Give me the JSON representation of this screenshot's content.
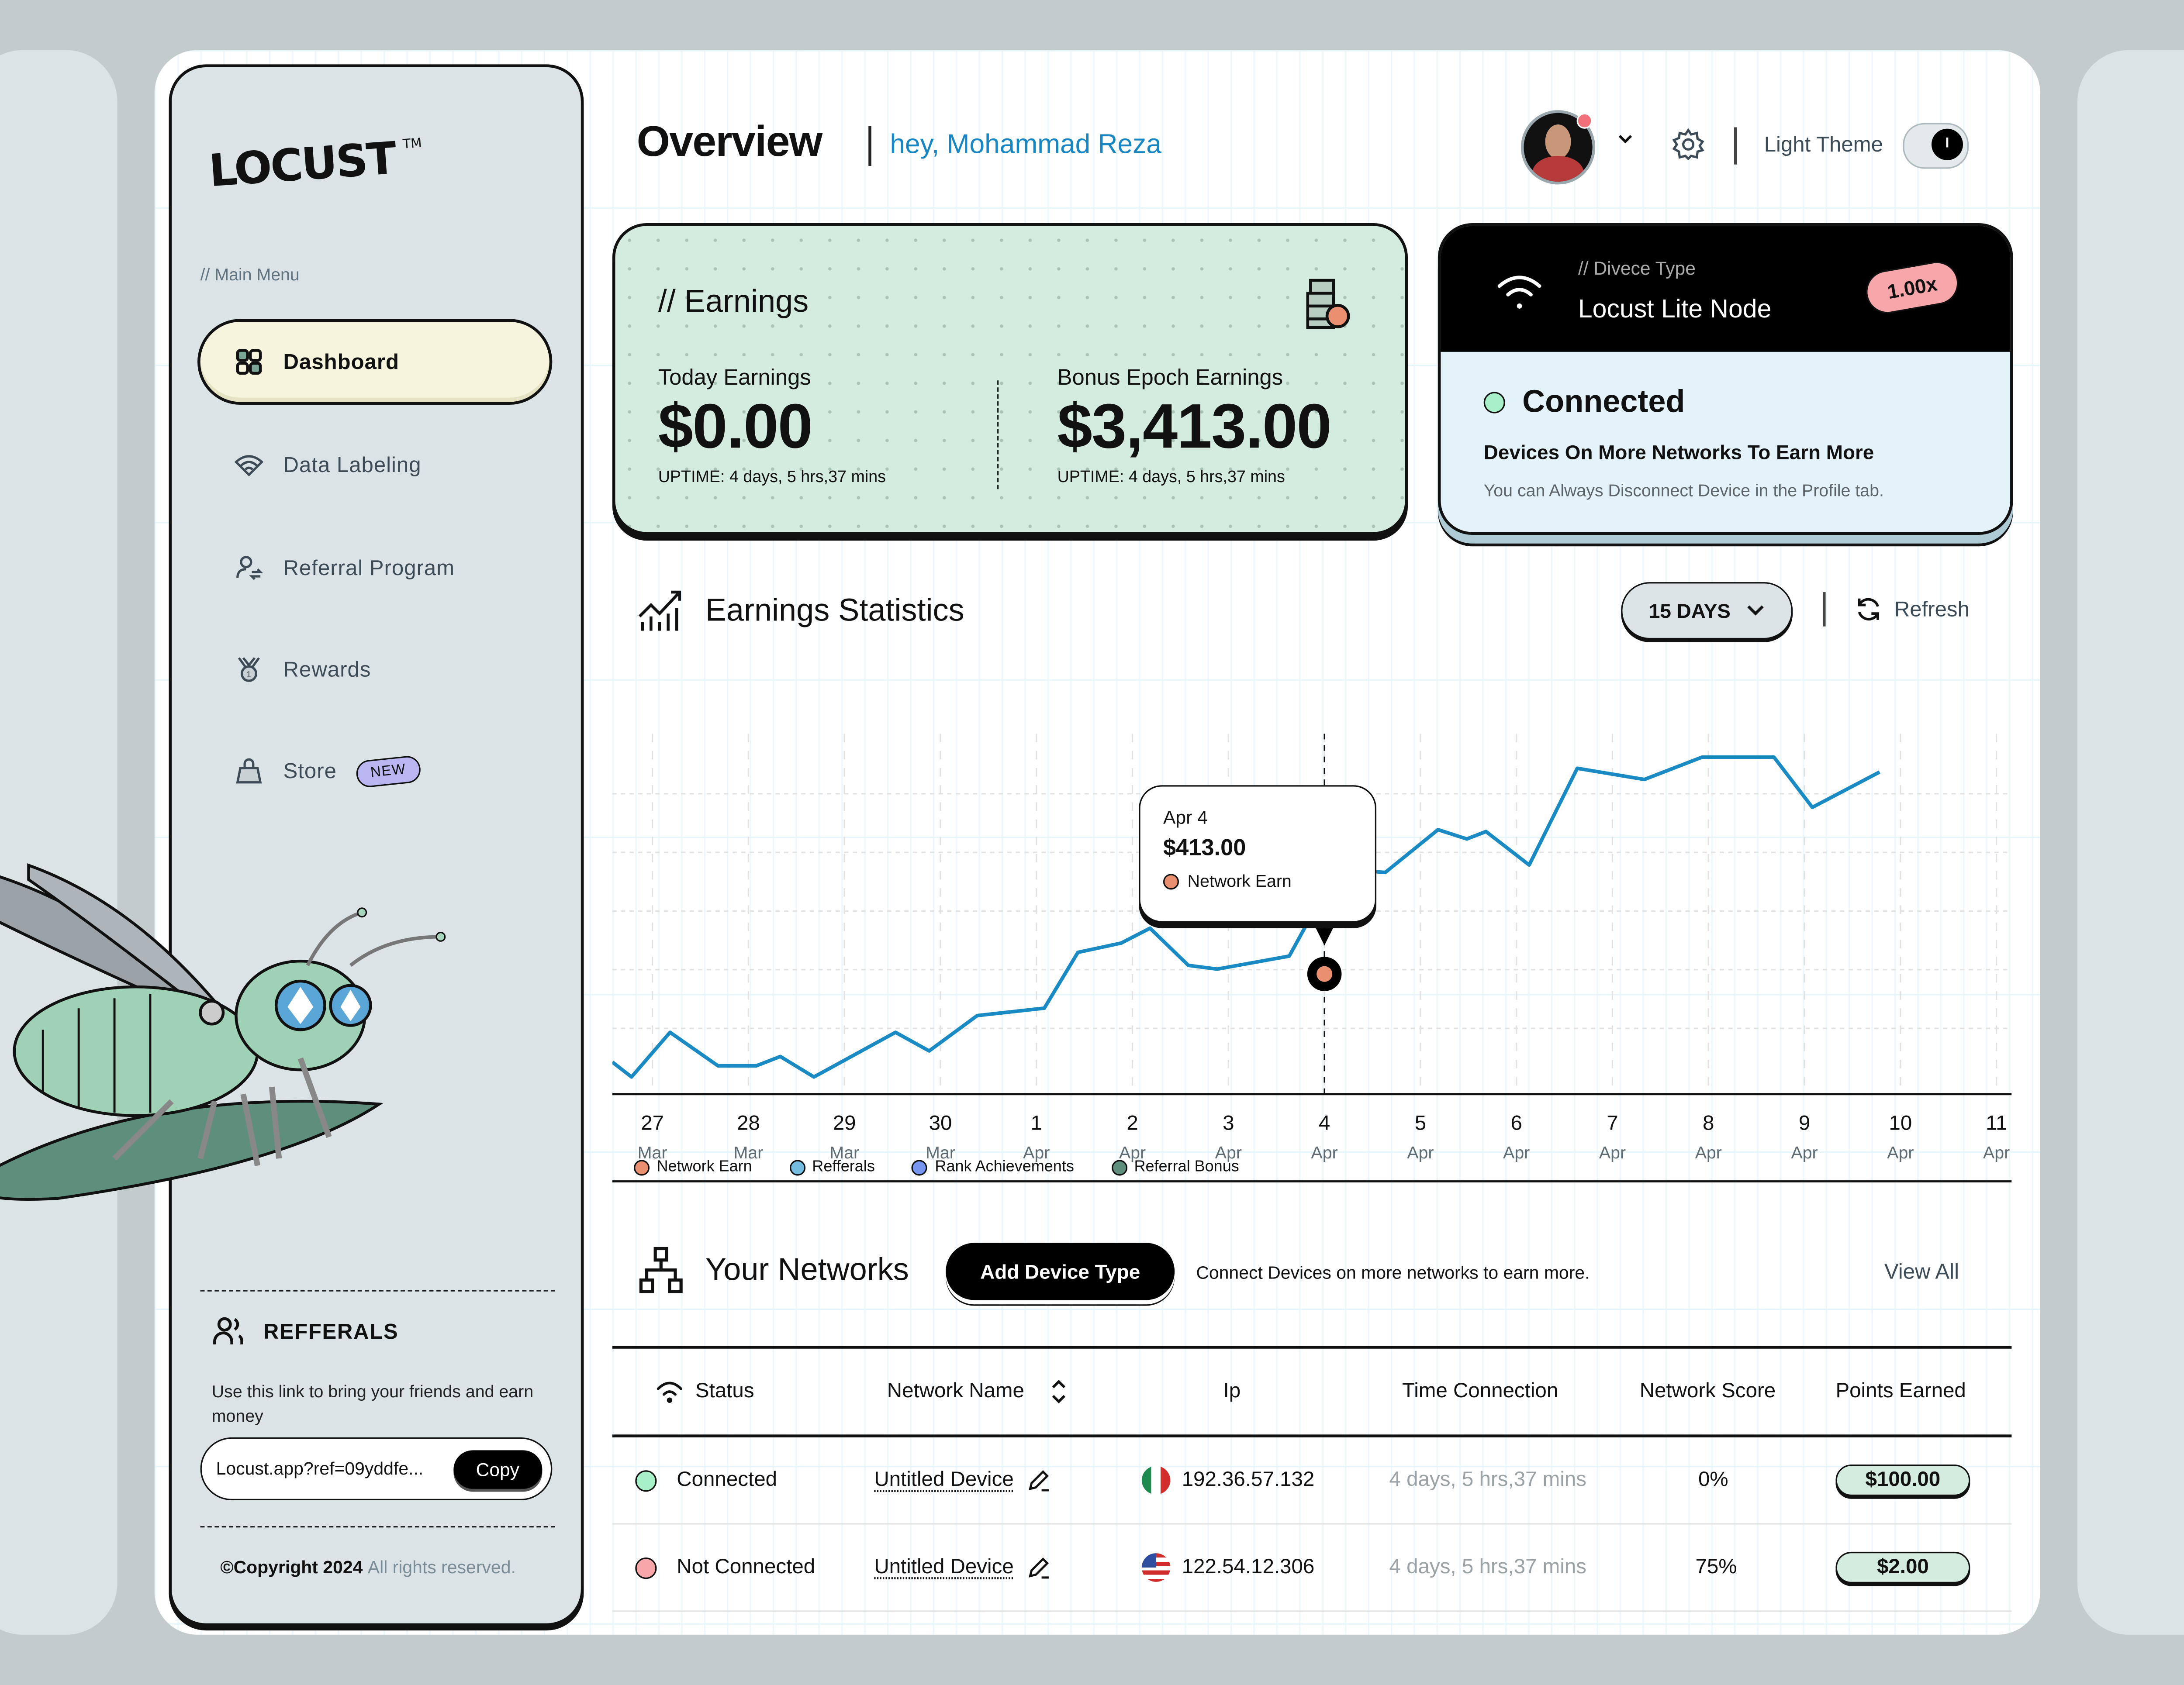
{
  "brand": {
    "name": "LOCUST",
    "trademark": "TM"
  },
  "sidebar": {
    "section_label": "// Main Menu",
    "items": [
      {
        "label": "Dashboard",
        "icon": "grid-icon",
        "active": true
      },
      {
        "label": "Data Labeling",
        "icon": "wifi-icon"
      },
      {
        "label": "Referral Program",
        "icon": "user-switch-icon"
      },
      {
        "label": "Rewards",
        "icon": "medal-icon"
      },
      {
        "label": "Store",
        "icon": "shopping-bag-icon",
        "badge": "NEW"
      }
    ],
    "referrals": {
      "title": "REFFERALS",
      "description": "Use this link to bring your friends and earn money",
      "link": "Locust.app?ref=09yddfe...",
      "copy_label": "Copy"
    },
    "copyright": {
      "bold": "©Copyright 2024",
      "rest": "All rights reserved."
    }
  },
  "header": {
    "title": "Overview",
    "greeting": "hey, Mohammad Reza",
    "theme_label": "Light Theme",
    "toggle_knob": "I"
  },
  "earnings": {
    "title": "// Earnings",
    "today": {
      "label": "Today Earnings",
      "amount": "$0.00",
      "uptime": "UPTIME: 4 days, 5 hrs,37 mins"
    },
    "bonus": {
      "label": "Bonus Epoch Earnings",
      "amount": "$3,413.00",
      "uptime": "UPTIME: 4 days, 5 hrs,37 mins"
    }
  },
  "device": {
    "subtitle": "// Divece Type",
    "name": "Locust Lite Node",
    "multiplier": "1.00x",
    "status": "Connected",
    "line1": "Devices On More Networks To Earn More",
    "line2": "You can Always Disconnect Device in the Profile tab."
  },
  "stats": {
    "title": "Earnings Statistics",
    "range": "15 DAYS",
    "refresh": "Refresh",
    "tooltip": {
      "date": "Apr 4",
      "value": "$413.00",
      "series": "Network Earn"
    }
  },
  "chart_data": {
    "type": "line",
    "title": "Earnings Statistics",
    "x": [
      {
        "day": "27",
        "month": "Mar"
      },
      {
        "day": "28",
        "month": "Mar"
      },
      {
        "day": "29",
        "month": "Mar"
      },
      {
        "day": "30",
        "month": "Mar"
      },
      {
        "day": "1",
        "month": "Apr"
      },
      {
        "day": "2",
        "month": "Apr"
      },
      {
        "day": "3",
        "month": "Apr"
      },
      {
        "day": "4",
        "month": "Apr"
      },
      {
        "day": "5",
        "month": "Apr"
      },
      {
        "day": "6",
        "month": "Apr"
      },
      {
        "day": "7",
        "month": "Apr"
      },
      {
        "day": "8",
        "month": "Apr"
      },
      {
        "day": "9",
        "month": "Apr"
      },
      {
        "day": "10",
        "month": "Apr"
      },
      {
        "day": "11",
        "month": "Apr"
      }
    ],
    "series": [
      {
        "name": "Network Earn",
        "color": "#1a8ac4",
        "points": [
          [
            0,
            0.08
          ],
          [
            0.2,
            0.0
          ],
          [
            0.6,
            0.24
          ],
          [
            1.1,
            0.06
          ],
          [
            1.5,
            0.06
          ],
          [
            1.75,
            0.11
          ],
          [
            2.1,
            0.0
          ],
          [
            2.95,
            0.24
          ],
          [
            3.3,
            0.14
          ],
          [
            3.8,
            0.33
          ],
          [
            4.5,
            0.37
          ],
          [
            4.85,
            0.67
          ],
          [
            5.3,
            0.72
          ],
          [
            5.6,
            0.8
          ],
          [
            6.0,
            0.6
          ],
          [
            6.3,
            0.58
          ],
          [
            7.05,
            0.65
          ],
          [
            7.55,
            1.12
          ],
          [
            8.05,
            1.1
          ],
          [
            8.6,
            1.33
          ],
          [
            8.9,
            1.28
          ],
          [
            9.1,
            1.32
          ],
          [
            9.55,
            1.14
          ],
          [
            10.05,
            1.66
          ],
          [
            10.75,
            1.6
          ],
          [
            11.35,
            1.72
          ],
          [
            12.1,
            1.72
          ],
          [
            12.5,
            1.45
          ],
          [
            13.2,
            1.64
          ]
        ]
      },
      {
        "name": "Refferals",
        "color": "#74bde0",
        "points": []
      },
      {
        "name": "Rank Achievements",
        "color": "#7595f0",
        "points": []
      },
      {
        "name": "Referral Bonus",
        "color": "#5e8f7c",
        "points": []
      }
    ],
    "highlight": {
      "x_label": "Apr 4",
      "value": 413.0
    },
    "legend_position": "bottom",
    "grid": true
  },
  "legend": [
    {
      "label": "Network Earn",
      "color": "#ea9070"
    },
    {
      "label": "Refferals",
      "color": "#74bde0"
    },
    {
      "label": "Rank Achievements",
      "color": "#7595f0"
    },
    {
      "label": "Referral Bonus",
      "color": "#5e8f7c"
    }
  ],
  "networks": {
    "title": "Your Networks",
    "add_label": "Add Device Type",
    "description": "Connect Devices on more networks to earn more.",
    "view_all": "View All",
    "columns": [
      "Status",
      "Network Name",
      "Ip",
      "Time Connection",
      "Network Score",
      "Points Earned"
    ],
    "rows": [
      {
        "status": "Connected",
        "status_color": "#a8f0c8",
        "name": "Untitled Device",
        "flag": "mexico",
        "ip": "192.36.57.132",
        "time": "4 days, 5 hrs,37 mins",
        "score": "0%",
        "points": "$100.00"
      },
      {
        "status": "Not Connected",
        "status_color": "#f7a6aa",
        "name": "Untitled Device",
        "flag": "usa",
        "ip": "122.54.12.306",
        "time": "4 days, 5 hrs,37 mins",
        "score": "75%",
        "points": "$2.00"
      }
    ]
  }
}
